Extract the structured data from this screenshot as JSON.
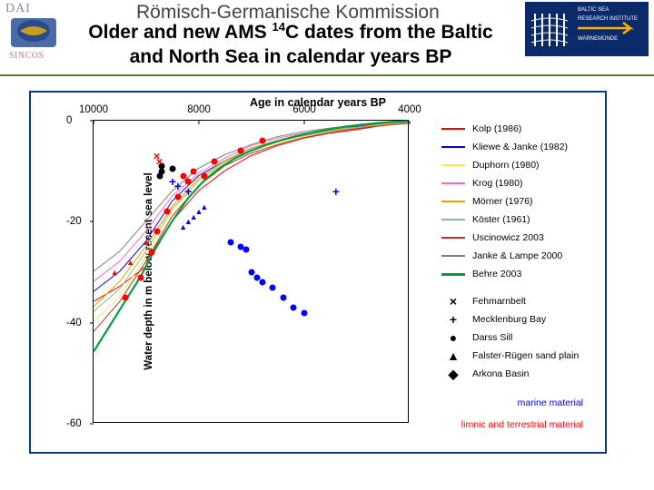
{
  "header": {
    "dai": "DAI",
    "sincos": "SINCOS",
    "kommission": "Römisch-Germanische Kommission",
    "title_pre": "Older and new AMS ",
    "title_sup": "14",
    "title_post": "C dates from the Baltic and North Sea in calendar years BP",
    "iow1": "BALTIC SEA",
    "iow2": "RESEARCH INSTITUTE",
    "iow3": "WARNEMÜNDE",
    "arrow_color": "#ffb000"
  },
  "chart": {
    "border_color": "#0b3a8c",
    "xlabel": "Age in calendar years BP",
    "ylabel": "Water depth in m below recent sea level",
    "xlim": [
      10000,
      4000
    ],
    "ylim": [
      0,
      -60
    ],
    "xticks": [
      {
        "v": 10000,
        "lbl": "10000"
      },
      {
        "v": 8000,
        "lbl": "8000"
      },
      {
        "v": 6000,
        "lbl": "6000"
      },
      {
        "v": 4000,
        "lbl": "4000"
      }
    ],
    "yticks": [
      {
        "v": 0,
        "lbl": "0"
      },
      {
        "v": -20,
        "lbl": "-20"
      },
      {
        "v": -40,
        "lbl": "-40"
      },
      {
        "v": -60,
        "lbl": "-60"
      }
    ],
    "curves": [
      {
        "name": "kolp",
        "color": "#ff0000",
        "w": 1,
        "pts": [
          [
            10000,
            -36
          ],
          [
            9500,
            -33
          ],
          [
            9000,
            -29
          ],
          [
            8500,
            -20
          ],
          [
            8000,
            -14
          ],
          [
            7500,
            -10
          ],
          [
            7000,
            -7
          ],
          [
            6500,
            -5
          ],
          [
            6000,
            -3.5
          ],
          [
            5500,
            -2.5
          ],
          [
            5000,
            -1.8
          ],
          [
            4500,
            -1
          ],
          [
            4000,
            -0.5
          ]
        ]
      },
      {
        "name": "kliewe",
        "color": "#0000ff",
        "w": 1,
        "pts": [
          [
            10000,
            -34
          ],
          [
            9500,
            -30
          ],
          [
            9000,
            -24
          ],
          [
            8500,
            -16
          ],
          [
            8000,
            -11
          ],
          [
            7500,
            -8
          ],
          [
            7000,
            -5.5
          ],
          [
            6500,
            -4
          ],
          [
            6000,
            -3
          ],
          [
            5500,
            -2
          ],
          [
            5000,
            -1.2
          ],
          [
            4500,
            -0.6
          ],
          [
            4000,
            -0.2
          ]
        ]
      },
      {
        "name": "duphorn",
        "color": "#f8e84a",
        "w": 1,
        "pts": [
          [
            10000,
            -40
          ],
          [
            9500,
            -35
          ],
          [
            9000,
            -27
          ],
          [
            8500,
            -18
          ],
          [
            8000,
            -12
          ],
          [
            7500,
            -8.5
          ],
          [
            7000,
            -6
          ],
          [
            6500,
            -4.5
          ],
          [
            6000,
            -3.2
          ],
          [
            5500,
            -2.2
          ],
          [
            5000,
            -1.5
          ],
          [
            4500,
            -0.8
          ],
          [
            4000,
            -0.3
          ]
        ]
      },
      {
        "name": "krog",
        "color": "#ff66cc",
        "w": 1,
        "pts": [
          [
            10000,
            -32
          ],
          [
            9500,
            -28
          ],
          [
            9000,
            -22
          ],
          [
            8500,
            -15
          ],
          [
            8000,
            -10.5
          ],
          [
            7500,
            -7.5
          ],
          [
            7000,
            -5
          ],
          [
            6500,
            -3.5
          ],
          [
            6000,
            -2.5
          ],
          [
            5500,
            -1.7
          ],
          [
            5000,
            -1
          ],
          [
            4500,
            -0.5
          ],
          [
            4000,
            -0.1
          ]
        ]
      },
      {
        "name": "morner",
        "color": "#ff9900",
        "w": 1,
        "pts": [
          [
            10000,
            -37
          ],
          [
            9500,
            -32
          ],
          [
            9000,
            -25
          ],
          [
            8500,
            -17
          ],
          [
            8000,
            -11.5
          ],
          [
            7500,
            -8
          ],
          [
            7000,
            -5.5
          ],
          [
            6500,
            -4
          ],
          [
            6000,
            -2.8
          ],
          [
            5500,
            -1.9
          ],
          [
            5000,
            -1.3
          ],
          [
            4500,
            -0.7
          ],
          [
            4000,
            -0.2
          ]
        ]
      },
      {
        "name": "koster",
        "color": "#8fbc8f",
        "w": 1,
        "pts": [
          [
            10000,
            -38
          ],
          [
            9500,
            -33.5
          ],
          [
            9000,
            -26
          ],
          [
            8500,
            -17.5
          ],
          [
            8000,
            -12
          ],
          [
            7500,
            -8.2
          ],
          [
            7000,
            -5.8
          ],
          [
            6500,
            -4.2
          ],
          [
            6000,
            -3
          ],
          [
            5500,
            -2.1
          ],
          [
            5000,
            -1.4
          ],
          [
            4500,
            -0.9
          ],
          [
            4000,
            -0.4
          ]
        ]
      },
      {
        "name": "uscinowicz",
        "color": "#c03030",
        "w": 1,
        "pts": [
          [
            10000,
            -42
          ],
          [
            9500,
            -36
          ],
          [
            9000,
            -28
          ],
          [
            8500,
            -19
          ],
          [
            8000,
            -13
          ],
          [
            7500,
            -9
          ],
          [
            7000,
            -6.5
          ],
          [
            6500,
            -4.8
          ],
          [
            6000,
            -3.4
          ],
          [
            5500,
            -2.4
          ],
          [
            5000,
            -1.6
          ],
          [
            4500,
            -1
          ],
          [
            4000,
            -0.5
          ]
        ]
      },
      {
        "name": "janke",
        "color": "#808080",
        "w": 1,
        "pts": [
          [
            10000,
            -30
          ],
          [
            9500,
            -26
          ],
          [
            9000,
            -20
          ],
          [
            8500,
            -14
          ],
          [
            8000,
            -9.5
          ],
          [
            7500,
            -6.8
          ],
          [
            7000,
            -4.8
          ],
          [
            6500,
            -3.2
          ],
          [
            6000,
            -2.2
          ],
          [
            5500,
            -1.5
          ],
          [
            5000,
            -0.9
          ],
          [
            4500,
            -0.4
          ],
          [
            4000,
            -0.1
          ]
        ]
      },
      {
        "name": "behre",
        "color": "#00a040",
        "w": 2.2,
        "pts": [
          [
            10000,
            -46
          ],
          [
            9700,
            -41
          ],
          [
            9400,
            -36
          ],
          [
            9100,
            -31
          ],
          [
            8800,
            -25
          ],
          [
            8500,
            -20
          ],
          [
            8200,
            -15.5
          ],
          [
            7900,
            -12
          ],
          [
            7600,
            -9.5
          ],
          [
            7300,
            -7.5
          ],
          [
            7000,
            -6
          ],
          [
            6700,
            -4.8
          ],
          [
            6400,
            -3.8
          ],
          [
            6100,
            -3
          ],
          [
            5800,
            -2.3
          ],
          [
            5500,
            -1.7
          ],
          [
            5200,
            -1.2
          ],
          [
            4900,
            -0.8
          ],
          [
            4600,
            -0.5
          ],
          [
            4300,
            -0.25
          ],
          [
            4000,
            -0.1
          ]
        ]
      }
    ],
    "markers": [
      {
        "t": "dot",
        "c": "#ff0000",
        "x": 9400,
        "y": -35
      },
      {
        "t": "dot",
        "c": "#ff0000",
        "x": 9100,
        "y": -31
      },
      {
        "t": "dot",
        "c": "#ff0000",
        "x": 8800,
        "y": -22
      },
      {
        "t": "dot",
        "c": "#ff0000",
        "x": 8900,
        "y": -26
      },
      {
        "t": "dot",
        "c": "#ff0000",
        "x": 8600,
        "y": -18
      },
      {
        "t": "dot",
        "c": "#ff0000",
        "x": 8400,
        "y": -15
      },
      {
        "t": "dot",
        "c": "#000",
        "x": 8700,
        "y": -9
      },
      {
        "t": "dot",
        "c": "#000",
        "x": 8700,
        "y": -10
      },
      {
        "t": "dot",
        "c": "#ff0000",
        "x": 8300,
        "y": -11
      },
      {
        "t": "dot",
        "c": "#ff0000",
        "x": 8200,
        "y": -12
      },
      {
        "t": "dot",
        "c": "#000",
        "x": 8750,
        "y": -11
      },
      {
        "t": "dot",
        "c": "#000",
        "x": 8500,
        "y": -9.5
      },
      {
        "t": "dot",
        "c": "#ff0000",
        "x": 8100,
        "y": -10
      },
      {
        "t": "dot",
        "c": "#ff0000",
        "x": 7900,
        "y": -11
      },
      {
        "t": "dot",
        "c": "#ff0000",
        "x": 7700,
        "y": -8
      },
      {
        "t": "dot",
        "c": "#ff0000",
        "x": 7200,
        "y": -6
      },
      {
        "t": "dot",
        "c": "#ff0000",
        "x": 6800,
        "y": -4
      },
      {
        "t": "tri",
        "c": "#ff0000",
        "x": 9600,
        "y": -30
      },
      {
        "t": "tri",
        "c": "#ff0000",
        "x": 9300,
        "y": -28
      },
      {
        "t": "tri",
        "c": "#ff0000",
        "x": 9000,
        "y": -24
      },
      {
        "t": "tri",
        "c": "#0000ff",
        "x": 8300,
        "y": -21
      },
      {
        "t": "tri",
        "c": "#0000ff",
        "x": 8200,
        "y": -20
      },
      {
        "t": "tri",
        "c": "#0000ff",
        "x": 8000,
        "y": -18
      },
      {
        "t": "tri",
        "c": "#0000ff",
        "x": 7900,
        "y": -17
      },
      {
        "t": "tri",
        "c": "#0000ff",
        "x": 8100,
        "y": -19
      },
      {
        "t": "dot",
        "c": "#0000ff",
        "x": 7400,
        "y": -24
      },
      {
        "t": "dot",
        "c": "#0000ff",
        "x": 7200,
        "y": -25
      },
      {
        "t": "dot",
        "c": "#0000ff",
        "x": 7100,
        "y": -25.5
      },
      {
        "t": "dot",
        "c": "#0000ff",
        "x": 7000,
        "y": -30
      },
      {
        "t": "dot",
        "c": "#0000ff",
        "x": 6900,
        "y": -31
      },
      {
        "t": "dot",
        "c": "#0000ff",
        "x": 6800,
        "y": -32
      },
      {
        "t": "dot",
        "c": "#0000ff",
        "x": 6600,
        "y": -33
      },
      {
        "t": "dot",
        "c": "#0000ff",
        "x": 6400,
        "y": -35
      },
      {
        "t": "dot",
        "c": "#0000ff",
        "x": 6200,
        "y": -37
      },
      {
        "t": "dot",
        "c": "#0000ff",
        "x": 6000,
        "y": -38
      },
      {
        "t": "plus",
        "c": "#0000ff",
        "x": 8500,
        "y": -12
      },
      {
        "t": "plus",
        "c": "#0000ff",
        "x": 8400,
        "y": -13
      },
      {
        "t": "plus",
        "c": "#0000ff",
        "x": 8200,
        "y": -14
      },
      {
        "t": "plus",
        "c": "#0000ff",
        "x": 5400,
        "y": -14
      },
      {
        "t": "x",
        "c": "#ff0000",
        "x": 8800,
        "y": -7
      },
      {
        "t": "x",
        "c": "#ff0000",
        "x": 8750,
        "y": -8
      }
    ]
  },
  "legend": {
    "lines": [
      {
        "lbl": "Kolp (1986)",
        "color": "#ff0000"
      },
      {
        "lbl": "Kliewe & Janke (1982)",
        "color": "#0000ff"
      },
      {
        "lbl": "Duphorn (1980)",
        "color": "#f8e84a"
      },
      {
        "lbl": "Krog (1980)",
        "color": "#ff66cc"
      },
      {
        "lbl": "Mörner (1976)",
        "color": "#ff9900"
      },
      {
        "lbl": "Köster (1961)",
        "color": "#8fbc8f"
      },
      {
        "lbl": "Uscinowicz 2003",
        "color": "#c03030"
      },
      {
        "lbl": "Janke & Lampe 2000",
        "color": "#808080"
      },
      {
        "lbl": "Behre 2003",
        "color": "#00a040",
        "w": 3
      }
    ],
    "symbols": [
      {
        "lbl": "Fehmarnbelt",
        "sym": "×"
      },
      {
        "lbl": "Mecklenburg Bay",
        "sym": "+"
      },
      {
        "lbl": "Darss Sill",
        "sym": "●"
      },
      {
        "lbl": "Falster-Rügen sand plain",
        "sym": "▲"
      },
      {
        "lbl": "Arkona Basin",
        "sym": "◆"
      }
    ],
    "notes": [
      {
        "txt": "marine material",
        "color": "#0000ff"
      },
      {
        "txt": "limnic and terrestrial material",
        "color": "#ff0000"
      }
    ]
  }
}
